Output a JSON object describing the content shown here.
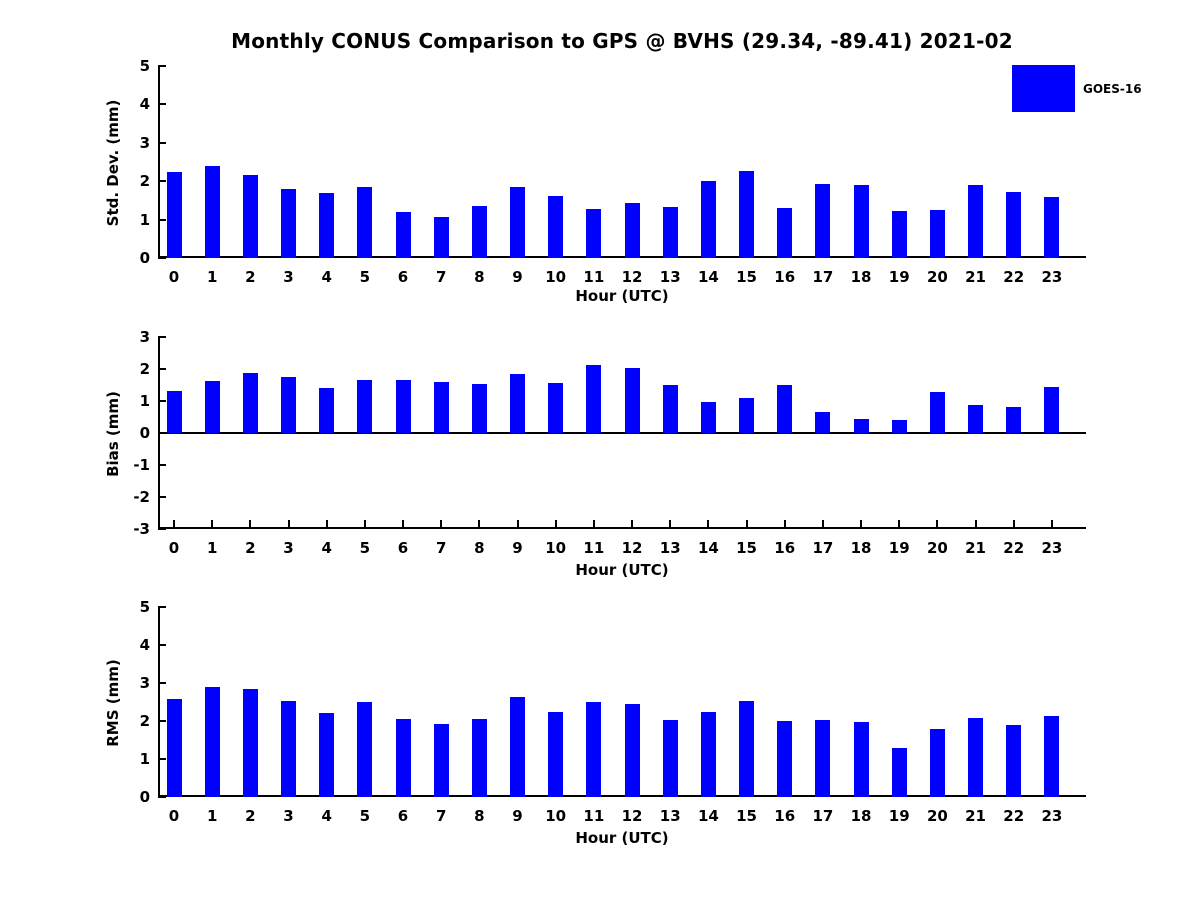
{
  "title": "Monthly CONUS Comparison to GPS @ BVHS (29.34, -89.41) 2021-02",
  "legend": {
    "label": "GOES-16",
    "color": "#0000ff"
  },
  "bar_color": "#0000ff",
  "chart_data": [
    {
      "type": "bar",
      "ylabel": "Std. Dev. (mm)",
      "xlabel": "Hour (UTC)",
      "categories": [
        "0",
        "1",
        "2",
        "3",
        "4",
        "5",
        "6",
        "7",
        "8",
        "9",
        "10",
        "11",
        "12",
        "13",
        "14",
        "15",
        "16",
        "17",
        "18",
        "19",
        "20",
        "21",
        "22",
        "23"
      ],
      "values": [
        2.24,
        2.4,
        2.17,
        1.8,
        1.69,
        1.85,
        1.2,
        1.08,
        1.36,
        1.85,
        1.62,
        1.27,
        1.43,
        1.34,
        2.01,
        2.27,
        1.31,
        1.94,
        1.91,
        1.23,
        1.26,
        1.89,
        1.73,
        1.58
      ],
      "ylim": [
        0,
        5
      ],
      "yticks": [
        0,
        1,
        2,
        3,
        4,
        5
      ],
      "grid": false,
      "legend_position": "upper right"
    },
    {
      "type": "bar",
      "ylabel": "Bias (mm)",
      "xlabel": "Hour (UTC)",
      "categories": [
        "0",
        "1",
        "2",
        "3",
        "4",
        "5",
        "6",
        "7",
        "8",
        "9",
        "10",
        "11",
        "12",
        "13",
        "14",
        "15",
        "16",
        "17",
        "18",
        "19",
        "20",
        "21",
        "22",
        "23"
      ],
      "values": [
        1.32,
        1.63,
        1.88,
        1.76,
        1.4,
        1.66,
        1.66,
        1.6,
        1.53,
        1.85,
        1.57,
        2.12,
        2.04,
        1.51,
        0.97,
        1.1,
        1.5,
        0.67,
        0.43,
        0.42,
        1.28,
        0.88,
        0.82,
        1.45
      ],
      "ylim": [
        -3,
        3
      ],
      "yticks": [
        3,
        2,
        1,
        0,
        -1,
        -2,
        -3
      ],
      "grid": false
    },
    {
      "type": "bar",
      "ylabel": "RMS (mm)",
      "xlabel": "Hour (UTC)",
      "categories": [
        "0",
        "1",
        "2",
        "3",
        "4",
        "5",
        "6",
        "7",
        "8",
        "9",
        "10",
        "11",
        "12",
        "13",
        "14",
        "15",
        "16",
        "17",
        "18",
        "19",
        "20",
        "21",
        "22",
        "23"
      ],
      "values": [
        2.59,
        2.9,
        2.85,
        2.52,
        2.21,
        2.49,
        2.05,
        1.93,
        2.05,
        2.62,
        2.23,
        2.49,
        2.46,
        2.03,
        2.23,
        2.52,
        2.0,
        2.02,
        1.97,
        1.28,
        1.79,
        2.08,
        1.89,
        2.13
      ],
      "ylim": [
        0,
        5
      ],
      "yticks": [
        0,
        1,
        2,
        3,
        4,
        5
      ],
      "grid": false
    }
  ]
}
